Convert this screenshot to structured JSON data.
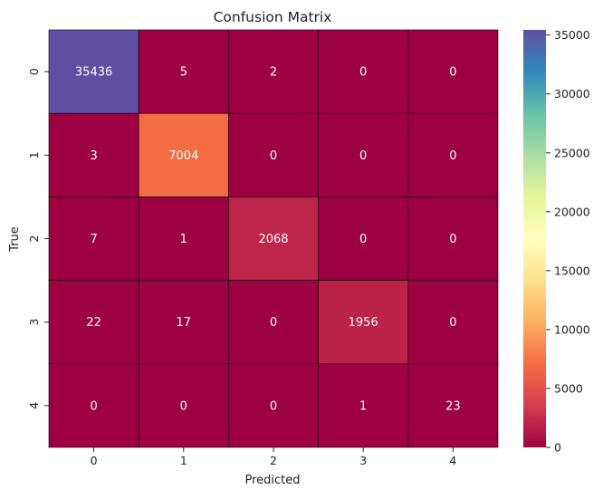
{
  "chart_data": {
    "type": "heatmap",
    "title": "Confusion Matrix",
    "xlabel": "Predicted",
    "ylabel": "True",
    "x_categories": [
      "0",
      "1",
      "2",
      "3",
      "4"
    ],
    "y_categories": [
      "0",
      "1",
      "2",
      "3",
      "4"
    ],
    "values": [
      [
        35436,
        5,
        2,
        0,
        0
      ],
      [
        3,
        7004,
        0,
        0,
        0
      ],
      [
        7,
        1,
        2068,
        0,
        0
      ],
      [
        22,
        17,
        0,
        1956,
        0
      ],
      [
        0,
        0,
        0,
        1,
        23
      ]
    ],
    "colormap": "Spectral",
    "colorbar": {
      "range": [
        0,
        35436
      ],
      "ticks": [
        0,
        5000,
        10000,
        15000,
        20000,
        25000,
        30000,
        35000
      ],
      "tick_labels": [
        "0",
        "5000",
        "10000",
        "15000",
        "20000",
        "25000",
        "30000",
        "35000"
      ]
    },
    "grid": false,
    "cell_border_color": "#000000",
    "annotation_color": "#ffffff"
  }
}
